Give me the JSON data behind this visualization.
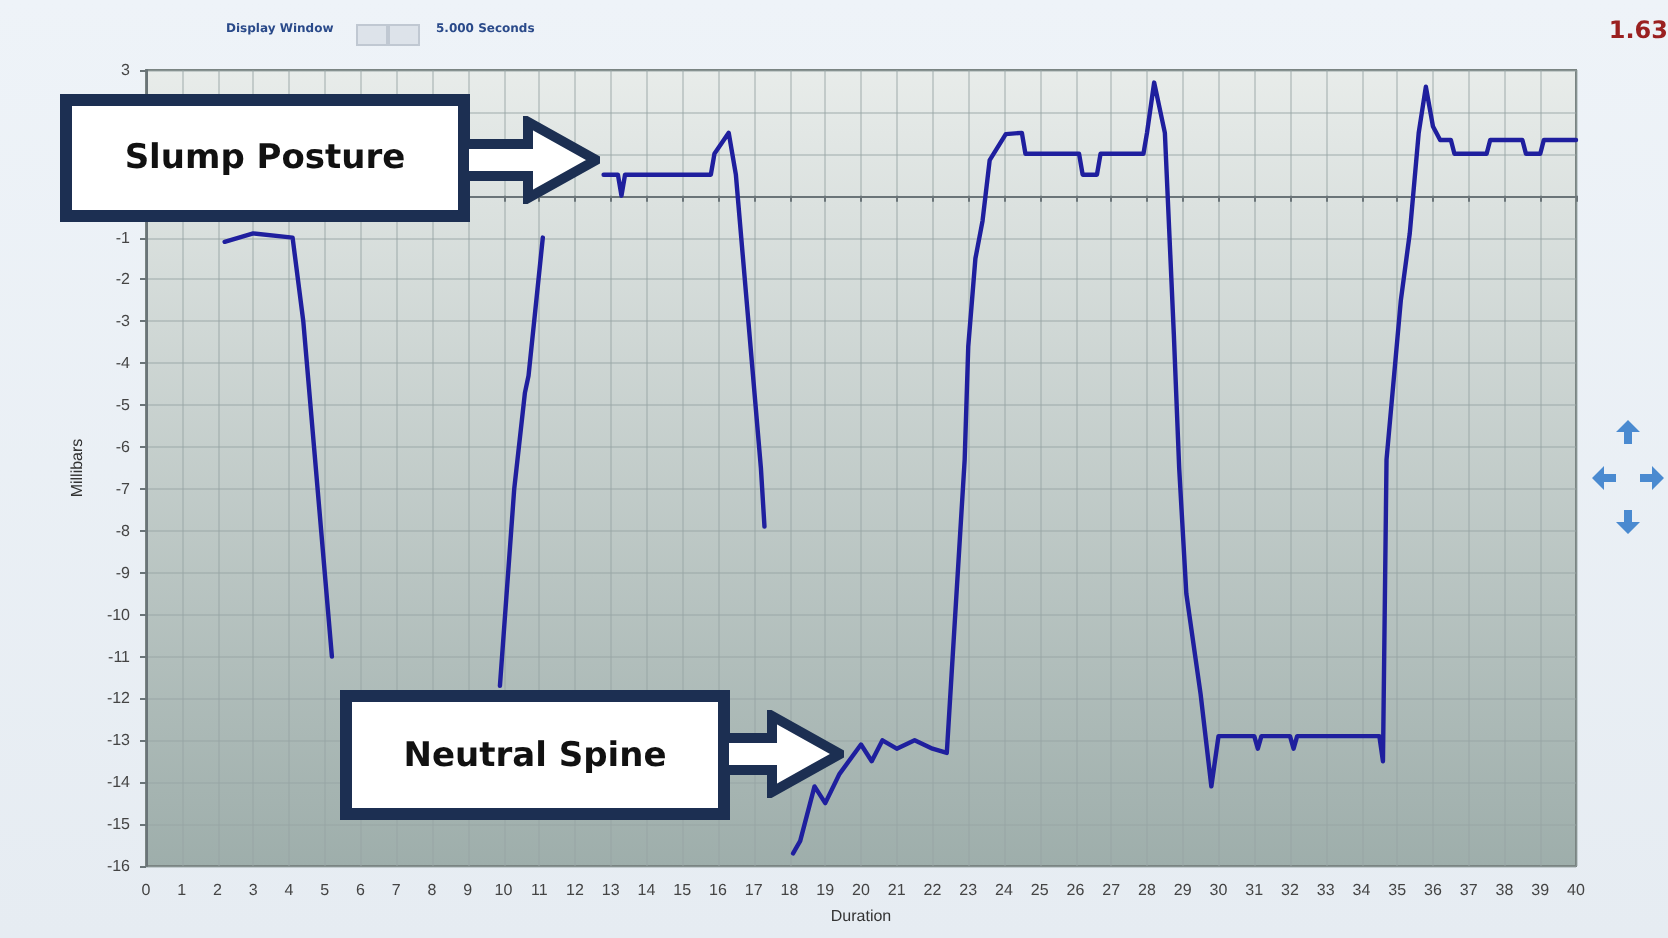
{
  "chart_data": {
    "type": "line",
    "xlabel": "Duration",
    "ylabel": "Millibars",
    "xlim": [
      0,
      40
    ],
    "xticks": [
      0,
      1,
      2,
      3,
      4,
      5,
      6,
      7,
      8,
      9,
      10,
      11,
      12,
      13,
      14,
      15,
      16,
      17,
      18,
      19,
      20,
      21,
      22,
      23,
      24,
      25,
      26,
      27,
      28,
      29,
      30,
      31,
      32,
      33,
      34,
      35,
      36,
      37,
      38,
      39,
      40
    ],
    "ylim": [
      -16,
      3
    ],
    "yticks": [
      -16,
      -15,
      -14,
      -13,
      -12,
      -11,
      -10,
      -9,
      -8,
      -7,
      -6,
      -5,
      -4,
      -3,
      -2,
      -1,
      {
        "value": 0,
        "label": null
      },
      {
        "value": 1,
        "label": null
      },
      {
        "value": 2,
        "label": null
      },
      3
    ],
    "grid": true,
    "marker": "none",
    "line_style": "solid",
    "annotations": [
      "Display Window",
      "5.000 Seconds",
      "1.63",
      "Slump Posture",
      "Neutral Spine"
    ],
    "series": [
      {
        "color": "#1f1f9e",
        "x": [
          2.2,
          3.0,
          4.1,
          4.4,
          4.7,
          4.9,
          5.0,
          5.2,
          5.5,
          7.5,
          9.9,
          10.3,
          10.6,
          10.7,
          11.1,
          11.3,
          11.6,
          12.0,
          12.5,
          12.8,
          13.2,
          13.3,
          13.4,
          15.8,
          15.9,
          16.3,
          16.5,
          17.2,
          17.3,
          17.6,
          18.0,
          18.1,
          18.3,
          18.7,
          19.0,
          19.4,
          20.0,
          20.3,
          20.6,
          21.0,
          21.5,
          22.0,
          22.4,
          22.9,
          23.0,
          23.2,
          23.4,
          23.6,
          24.05,
          24.5,
          24.6,
          26.1,
          26.2,
          26.6,
          26.7,
          27.9,
          28.0,
          28.2,
          28.5,
          28.75,
          28.9,
          29.1,
          29.5,
          29.8,
          30.0,
          31.0,
          31.1,
          31.2,
          32.0,
          32.1,
          32.2,
          33.0,
          34.5,
          34.6,
          34.7,
          35.1,
          35.35,
          35.6,
          35.8,
          36.0,
          36.2,
          36.5,
          36.6,
          37.5,
          37.6,
          38.5,
          38.6,
          39.0,
          39.1,
          40.0
        ],
        "values": [
          -1.1,
          -0.9,
          -1,
          -3,
          -6,
          -8,
          -9,
          -11,
          null,
          null,
          -11.7,
          -7,
          -4.7,
          -4.3,
          -1,
          null,
          null,
          null,
          null,
          0.5,
          0.5,
          0,
          0.5,
          0.5,
          1,
          1.5,
          0.5,
          -6.5,
          -7.9,
          null,
          null,
          -15.7,
          -15.4,
          -14.1,
          -14.5,
          -13.8,
          -13.1,
          -13.5,
          -13,
          -13.2,
          -13,
          -13.2,
          -13.3,
          -6.3,
          -3.6,
          -1.5,
          -0.6,
          0.85,
          1.47,
          1.5,
          1,
          1,
          0.5,
          0.5,
          1,
          1,
          1.5,
          2.7,
          1.5,
          -3.3,
          -6.5,
          -9.5,
          -11.9,
          -14.1,
          -12.9,
          -12.9,
          -13.2,
          -12.9,
          -12.9,
          -13.2,
          -12.9,
          -12.9,
          -12.9,
          -13.5,
          -6.3,
          -2.5,
          -0.9,
          1.5,
          2.6,
          1.65,
          1.33,
          1.33,
          1,
          1,
          1.33,
          1.33,
          1,
          1,
          1.33,
          1.33
        ]
      }
    ]
  }
}
